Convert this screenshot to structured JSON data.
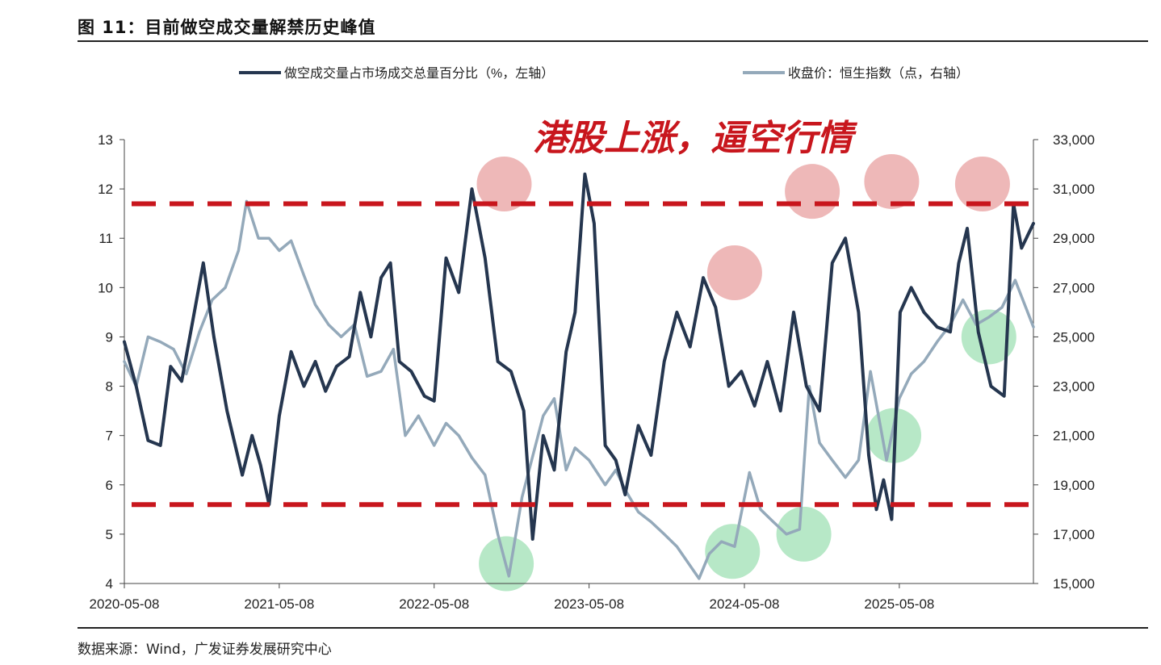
{
  "figure": {
    "title": "图 11：目前做空成交量解禁历史峰值",
    "source": "数据来源：Wind，广发证券发展研究中心"
  },
  "chart_data": {
    "type": "line",
    "annotation": "港股上涨，逼空行情",
    "x_tick_labels": [
      "2020-05-08",
      "2021-05-08",
      "2022-05-08",
      "2023-05-08",
      "2024-05-08",
      "2025-05-08"
    ],
    "x_range": [
      "2020-05-08",
      "2026-03-20"
    ],
    "y_left": {
      "ticks": [
        "4",
        "5",
        "6",
        "7",
        "8",
        "9",
        "10",
        "11",
        "12",
        "13"
      ],
      "range": [
        4,
        13
      ]
    },
    "y_right": {
      "ticks": [
        "15,000",
        "17,000",
        "19,000",
        "21,000",
        "23,000",
        "25,000",
        "27,000",
        "29,000",
        "31,000",
        "33,000"
      ],
      "range": [
        15000,
        33000
      ]
    },
    "reference_lines_left": [
      11.7,
      5.6
    ],
    "legend_position": "top",
    "grid": false,
    "series": [
      {
        "name": "做空成交量占市场成交总量百分比（%，左轴）",
        "axis": "left",
        "color": "#25364f",
        "points": [
          [
            "2020-05-08",
            8.9
          ],
          [
            "2020-06-05",
            8.0
          ],
          [
            "2020-07-03",
            6.9
          ],
          [
            "2020-08-01",
            6.8
          ],
          [
            "2020-08-25",
            8.4
          ],
          [
            "2020-09-20",
            8.1
          ],
          [
            "2020-10-20",
            9.5
          ],
          [
            "2020-11-10",
            10.5
          ],
          [
            "2020-12-05",
            9.0
          ],
          [
            "2021-01-05",
            7.5
          ],
          [
            "2021-02-10",
            6.2
          ],
          [
            "2021-03-05",
            7.0
          ],
          [
            "2021-03-25",
            6.4
          ],
          [
            "2021-04-14",
            5.6
          ],
          [
            "2021-05-08",
            7.4
          ],
          [
            "2021-06-05",
            8.7
          ],
          [
            "2021-07-05",
            8.0
          ],
          [
            "2021-08-01",
            8.5
          ],
          [
            "2021-08-25",
            7.9
          ],
          [
            "2021-09-20",
            8.4
          ],
          [
            "2021-10-20",
            8.6
          ],
          [
            "2021-11-15",
            9.9
          ],
          [
            "2021-12-10",
            9.0
          ],
          [
            "2022-01-03",
            10.2
          ],
          [
            "2022-01-25",
            10.5
          ],
          [
            "2022-02-15",
            8.5
          ],
          [
            "2022-03-15",
            8.3
          ],
          [
            "2022-04-15",
            7.8
          ],
          [
            "2022-05-08",
            7.7
          ],
          [
            "2022-06-05",
            10.6
          ],
          [
            "2022-07-05",
            9.9
          ],
          [
            "2022-08-05",
            12.0
          ],
          [
            "2022-09-05",
            10.6
          ],
          [
            "2022-10-05",
            8.5
          ],
          [
            "2022-11-05",
            8.3
          ],
          [
            "2022-12-05",
            7.5
          ],
          [
            "2022-12-26",
            4.9
          ],
          [
            "2023-01-20",
            7.0
          ],
          [
            "2023-02-15",
            6.3
          ],
          [
            "2023-03-15",
            8.7
          ],
          [
            "2023-04-05",
            9.5
          ],
          [
            "2023-04-28",
            12.3
          ],
          [
            "2023-05-20",
            11.3
          ],
          [
            "2023-06-15",
            6.8
          ],
          [
            "2023-07-10",
            6.5
          ],
          [
            "2023-08-01",
            5.8
          ],
          [
            "2023-09-01",
            7.2
          ],
          [
            "2023-10-01",
            6.6
          ],
          [
            "2023-11-01",
            8.5
          ],
          [
            "2023-12-01",
            9.5
          ],
          [
            "2024-01-01",
            8.8
          ],
          [
            "2024-02-01",
            10.2
          ],
          [
            "2024-03-01",
            9.6
          ],
          [
            "2024-04-01",
            8.0
          ],
          [
            "2024-05-01",
            8.3
          ],
          [
            "2024-06-01",
            7.6
          ],
          [
            "2024-07-01",
            8.5
          ],
          [
            "2024-08-01",
            7.5
          ],
          [
            "2024-09-01",
            9.5
          ],
          [
            "2024-10-01",
            8.0
          ],
          [
            "2024-11-01",
            7.5
          ],
          [
            "2024-12-01",
            10.5
          ],
          [
            "2025-01-01",
            11.0
          ],
          [
            "2025-02-01",
            9.5
          ],
          [
            "2025-02-25",
            6.6
          ],
          [
            "2025-03-15",
            5.5
          ],
          [
            "2025-04-01",
            6.1
          ],
          [
            "2025-04-20",
            5.3
          ],
          [
            "2025-05-10",
            9.5
          ],
          [
            "2025-06-05",
            10.0
          ],
          [
            "2025-07-05",
            9.5
          ],
          [
            "2025-08-05",
            9.2
          ],
          [
            "2025-09-05",
            9.1
          ],
          [
            "2025-09-25",
            10.5
          ],
          [
            "2025-10-15",
            11.2
          ],
          [
            "2025-11-10",
            9.1
          ],
          [
            "2025-12-10",
            8.0
          ],
          [
            "2026-01-10",
            7.8
          ],
          [
            "2026-02-01",
            11.7
          ],
          [
            "2026-02-20",
            10.8
          ],
          [
            "2026-03-20",
            11.3
          ]
        ]
      },
      {
        "name": "收盘价：恒生指数（点，右轴）",
        "axis": "right",
        "color": "#94a9ba",
        "points": [
          [
            "2020-05-08",
            24000
          ],
          [
            "2020-06-05",
            23000
          ],
          [
            "2020-07-03",
            25000
          ],
          [
            "2020-08-01",
            24800
          ],
          [
            "2020-09-01",
            24500
          ],
          [
            "2020-10-01",
            23500
          ],
          [
            "2020-11-01",
            25200
          ],
          [
            "2020-12-01",
            26500
          ],
          [
            "2021-01-01",
            27000
          ],
          [
            "2021-02-01",
            28500
          ],
          [
            "2021-02-20",
            30500
          ],
          [
            "2021-03-20",
            29000
          ],
          [
            "2021-04-14",
            29000
          ],
          [
            "2021-05-08",
            28500
          ],
          [
            "2021-06-05",
            28900
          ],
          [
            "2021-07-05",
            27500
          ],
          [
            "2021-08-01",
            26300
          ],
          [
            "2021-09-01",
            25500
          ],
          [
            "2021-10-01",
            25000
          ],
          [
            "2021-11-01",
            25500
          ],
          [
            "2021-12-01",
            23400
          ],
          [
            "2022-01-03",
            23600
          ],
          [
            "2022-02-01",
            24500
          ],
          [
            "2022-03-01",
            21000
          ],
          [
            "2022-04-01",
            21800
          ],
          [
            "2022-05-08",
            20600
          ],
          [
            "2022-06-05",
            21500
          ],
          [
            "2022-07-05",
            21000
          ],
          [
            "2022-08-05",
            20100
          ],
          [
            "2022-09-05",
            19400
          ],
          [
            "2022-10-05",
            17000
          ],
          [
            "2022-10-31",
            15300
          ],
          [
            "2022-12-01",
            18500
          ],
          [
            "2023-01-20",
            21800
          ],
          [
            "2023-02-15",
            22500
          ],
          [
            "2023-03-15",
            19600
          ],
          [
            "2023-04-05",
            20500
          ],
          [
            "2023-05-08",
            20000
          ],
          [
            "2023-06-15",
            19000
          ],
          [
            "2023-07-10",
            19600
          ],
          [
            "2023-08-01",
            18800
          ],
          [
            "2023-09-01",
            17900
          ],
          [
            "2023-10-01",
            17500
          ],
          [
            "2023-11-01",
            17000
          ],
          [
            "2023-12-01",
            16500
          ],
          [
            "2024-01-22",
            15200
          ],
          [
            "2024-02-15",
            16200
          ],
          [
            "2024-03-15",
            16700
          ],
          [
            "2024-04-15",
            16500
          ],
          [
            "2024-05-20",
            19500
          ],
          [
            "2024-06-15",
            18000
          ],
          [
            "2024-07-15",
            17500
          ],
          [
            "2024-08-15",
            17000
          ],
          [
            "2024-09-15",
            17200
          ],
          [
            "2024-10-08",
            23000
          ],
          [
            "2024-11-01",
            20700
          ],
          [
            "2024-12-01",
            20000
          ],
          [
            "2025-01-01",
            19300
          ],
          [
            "2025-02-01",
            20000
          ],
          [
            "2025-03-01",
            23600
          ],
          [
            "2025-04-08",
            20000
          ],
          [
            "2025-05-08",
            22500
          ],
          [
            "2025-06-05",
            23500
          ],
          [
            "2025-07-05",
            24000
          ],
          [
            "2025-08-05",
            24800
          ],
          [
            "2025-09-05",
            25500
          ],
          [
            "2025-10-05",
            26500
          ],
          [
            "2025-11-05",
            25500
          ],
          [
            "2025-12-05",
            25800
          ],
          [
            "2026-01-05",
            26200
          ],
          [
            "2026-02-05",
            27300
          ],
          [
            "2026-03-20",
            25400
          ]
        ]
      }
    ],
    "highlight_circles": [
      {
        "color": "#e8a0a0",
        "date": "2022-10-20",
        "axis": "left",
        "value": 12.1
      },
      {
        "color": "#e8a0a0",
        "date": "2024-04-15",
        "axis": "left",
        "value": 10.3
      },
      {
        "color": "#e8a0a0",
        "date": "2024-10-15",
        "axis": "left",
        "value": 11.95
      },
      {
        "color": "#e8a0a0",
        "date": "2025-04-20",
        "axis": "left",
        "value": 12.15
      },
      {
        "color": "#e8a0a0",
        "date": "2025-11-20",
        "axis": "left",
        "value": 12.1
      },
      {
        "color": "#9fe0b4",
        "date": "2022-10-25",
        "axis": "right",
        "value": 15800
      },
      {
        "color": "#9fe0b4",
        "date": "2024-04-10",
        "axis": "right",
        "value": 16300
      },
      {
        "color": "#9fe0b4",
        "date": "2024-09-25",
        "axis": "right",
        "value": 17000
      },
      {
        "color": "#9fe0b4",
        "date": "2025-04-25",
        "axis": "right",
        "value": 21000
      },
      {
        "color": "#9fe0b4",
        "date": "2025-12-05",
        "axis": "right",
        "value": 25000
      }
    ],
    "colors": {
      "reference_line": "#c8161d",
      "annotation": "#c8161d",
      "axis": "#444444"
    }
  }
}
